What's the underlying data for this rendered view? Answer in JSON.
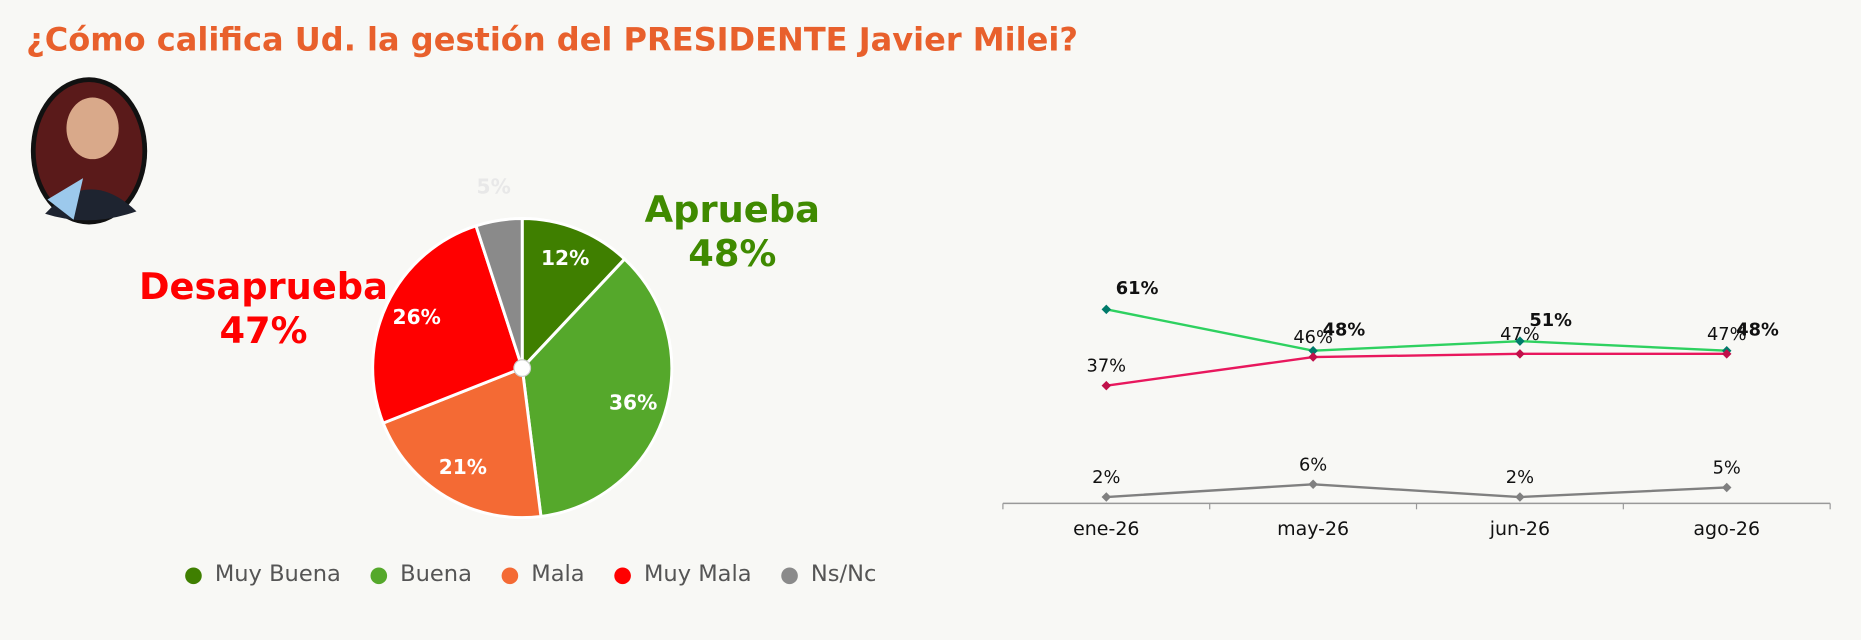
{
  "title": "¿Cómo califica Ud. la gestión del PRESIDENTE Javier Milei?",
  "chart_data": [
    {
      "type": "pie",
      "categories": [
        "Muy Buena",
        "Buena",
        "Mala",
        "Muy Mala",
        "Ns/Nc"
      ],
      "values": [
        12,
        36,
        21,
        26,
        5
      ],
      "value_labels": [
        "12%",
        "36%",
        "21%",
        "26%",
        "5%"
      ],
      "colors": [
        "#3f7f00",
        "#55a82b",
        "#f46a34",
        "#ff0000",
        "#8a8a8a"
      ],
      "annotations": [
        {
          "text": "Aprueba",
          "value": 48,
          "label": "48%",
          "color": "#3f8a00"
        },
        {
          "text": "Desaprueba",
          "value": 47,
          "label": "47%",
          "color": "#ff0000"
        }
      ]
    },
    {
      "type": "line",
      "categories": [
        "ene-26",
        "may-26",
        "jun-26",
        "ago-26"
      ],
      "series": [
        {
          "color": "#2ed160",
          "marker_color": "#007a6a",
          "bold": true,
          "values": [
            61,
            48,
            51,
            48
          ],
          "value_labels": [
            "61%",
            "48%",
            "51%",
            "48%"
          ]
        },
        {
          "color": "#e8175d",
          "marker_color": "#c0104a",
          "bold": false,
          "values": [
            37,
            46,
            47,
            47
          ],
          "value_labels": [
            "37%",
            "46%",
            "47%",
            "47%"
          ]
        },
        {
          "color": "#808080",
          "marker_color": "#808080",
          "bold": false,
          "values": [
            2,
            6,
            2,
            5
          ],
          "value_labels": [
            "2%",
            "6%",
            "2%",
            "5%"
          ]
        }
      ]
    }
  ]
}
